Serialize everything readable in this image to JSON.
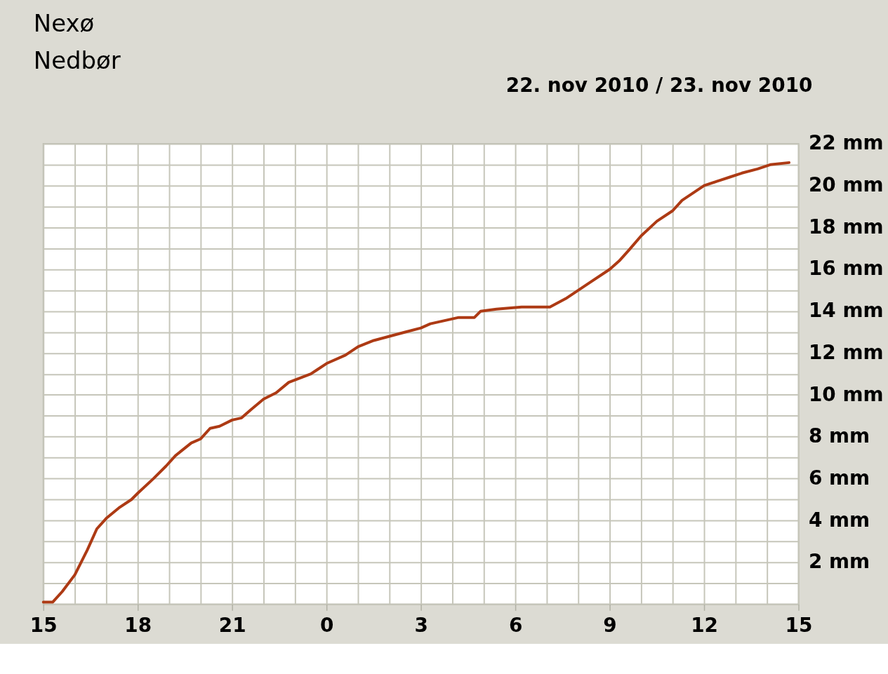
{
  "chart_data": {
    "type": "line",
    "title": "Nexø",
    "subtitle": "Nedbør",
    "annotations": [
      "22. nov 2010 / 23. nov 2010"
    ],
    "x": [
      "2010-11-22T15:00",
      "2010-11-22T15:18",
      "2010-11-22T15:36",
      "2010-11-22T16:00",
      "2010-11-22T16:24",
      "2010-11-22T16:42",
      "2010-11-22T17:00",
      "2010-11-22T17:24",
      "2010-11-22T17:48",
      "2010-11-22T18:00",
      "2010-11-22T18:30",
      "2010-11-22T18:54",
      "2010-11-22T19:12",
      "2010-11-22T19:42",
      "2010-11-22T20:00",
      "2010-11-22T20:18",
      "2010-11-22T20:36",
      "2010-11-22T21:00",
      "2010-11-22T21:18",
      "2010-11-22T21:36",
      "2010-11-22T22:00",
      "2010-11-22T22:24",
      "2010-11-22T22:48",
      "2010-11-22T23:30",
      "2010-11-22T23:42",
      "2010-11-23T00:00",
      "2010-11-23T00:36",
      "2010-11-23T01:00",
      "2010-11-23T01:30",
      "2010-11-23T02:00",
      "2010-11-23T02:30",
      "2010-11-23T03:00",
      "2010-11-23T03:18",
      "2010-11-23T03:54",
      "2010-11-23T04:12",
      "2010-11-23T04:42",
      "2010-11-23T04:54",
      "2010-11-23T05:24",
      "2010-11-23T06:12",
      "2010-11-23T07:06",
      "2010-11-23T07:36",
      "2010-11-23T08:00",
      "2010-11-23T08:24",
      "2010-11-23T09:00",
      "2010-11-23T09:18",
      "2010-11-23T09:36",
      "2010-11-23T10:00",
      "2010-11-23T10:30",
      "2010-11-23T11:00",
      "2010-11-23T11:18",
      "2010-11-23T11:42",
      "2010-11-23T12:00",
      "2010-11-23T12:24",
      "2010-11-23T12:48",
      "2010-11-23T13:12",
      "2010-11-23T13:42",
      "2010-11-23T14:06",
      "2010-11-23T14:42"
    ],
    "series": [
      {
        "color": "#ad3a14",
        "values": [
          0.1,
          0.1,
          0.6,
          1.4,
          2.6,
          3.6,
          4.1,
          4.6,
          5.0,
          5.3,
          6.0,
          6.6,
          7.1,
          7.7,
          7.9,
          8.4,
          8.5,
          8.8,
          8.9,
          9.3,
          9.8,
          10.1,
          10.6,
          11.0,
          11.2,
          11.5,
          11.9,
          12.3,
          12.6,
          12.8,
          13.0,
          13.2,
          13.4,
          13.6,
          13.7,
          13.7,
          14.0,
          14.1,
          14.2,
          14.2,
          14.6,
          15.0,
          15.4,
          16.0,
          16.4,
          16.9,
          17.6,
          18.3,
          18.8,
          19.3,
          19.7,
          20.0,
          20.2,
          20.4,
          20.6,
          20.8,
          21.0,
          21.1
        ]
      }
    ],
    "xlim": [
      "2010-11-22T15:00",
      "2010-11-23T15:00"
    ],
    "xticks": [
      {
        "value": "2010-11-22T15:00",
        "label": "15"
      },
      {
        "value": "2010-11-22T16:00",
        "label": null
      },
      {
        "value": "2010-11-22T17:00",
        "label": null
      },
      {
        "value": "2010-11-22T18:00",
        "label": "18"
      },
      {
        "value": "2010-11-22T19:00",
        "label": null
      },
      {
        "value": "2010-11-22T20:00",
        "label": null
      },
      {
        "value": "2010-11-22T21:00",
        "label": "21"
      },
      {
        "value": "2010-11-22T22:00",
        "label": null
      },
      {
        "value": "2010-11-22T23:00",
        "label": null
      },
      {
        "value": "2010-11-23T00:00",
        "label": "0"
      },
      {
        "value": "2010-11-23T01:00",
        "label": null
      },
      {
        "value": "2010-11-23T02:00",
        "label": null
      },
      {
        "value": "2010-11-23T03:00",
        "label": "3"
      },
      {
        "value": "2010-11-23T04:00",
        "label": null
      },
      {
        "value": "2010-11-23T05:00",
        "label": null
      },
      {
        "value": "2010-11-23T06:00",
        "label": "6"
      },
      {
        "value": "2010-11-23T07:00",
        "label": null
      },
      {
        "value": "2010-11-23T08:00",
        "label": null
      },
      {
        "value": "2010-11-23T09:00",
        "label": "9"
      },
      {
        "value": "2010-11-23T10:00",
        "label": null
      },
      {
        "value": "2010-11-23T11:00",
        "label": null
      },
      {
        "value": "2010-11-23T12:00",
        "label": "12"
      },
      {
        "value": "2010-11-23T13:00",
        "label": null
      },
      {
        "value": "2010-11-23T14:00",
        "label": null
      },
      {
        "value": "2010-11-23T15:00",
        "label": "15"
      }
    ],
    "ylim": [
      0,
      22
    ],
    "yticks": [
      {
        "value": 0,
        "label": null
      },
      {
        "value": 1,
        "label": null
      },
      {
        "value": 2,
        "label": "2 mm"
      },
      {
        "value": 3,
        "label": null
      },
      {
        "value": 4,
        "label": "4 mm"
      },
      {
        "value": 5,
        "label": null
      },
      {
        "value": 6,
        "label": "6 mm"
      },
      {
        "value": 7,
        "label": null
      },
      {
        "value": 8,
        "label": "8 mm"
      },
      {
        "value": 9,
        "label": null
      },
      {
        "value": 10,
        "label": "10 mm"
      },
      {
        "value": 11,
        "label": null
      },
      {
        "value": 12,
        "label": "12 mm"
      },
      {
        "value": 13,
        "label": null
      },
      {
        "value": 14,
        "label": "14 mm"
      },
      {
        "value": 15,
        "label": null
      },
      {
        "value": 16,
        "label": "16 mm"
      },
      {
        "value": 17,
        "label": null
      },
      {
        "value": 18,
        "label": "18 mm"
      },
      {
        "value": 19,
        "label": null
      },
      {
        "value": 20,
        "label": "20 mm"
      },
      {
        "value": 21,
        "label": null
      },
      {
        "value": 22,
        "label": "22 mm"
      }
    ],
    "grid": true,
    "marker": "none",
    "line_style": "solid"
  }
}
